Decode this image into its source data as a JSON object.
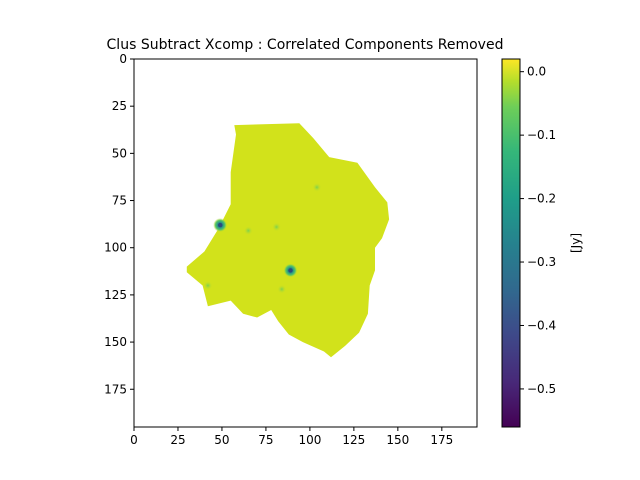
{
  "chart_data": {
    "type": "heatmap",
    "title": "Clus Subtract Xcomp : Correlated Components Removed",
    "xlabel": "",
    "ylabel": "",
    "xlim": [
      0,
      195
    ],
    "ylim": [
      195,
      0
    ],
    "xticks": [
      "0",
      "25",
      "50",
      "75",
      "100",
      "125",
      "150",
      "175"
    ],
    "yticks": [
      "0",
      "25",
      "50",
      "75",
      "100",
      "125",
      "150",
      "175"
    ],
    "colorbar": {
      "label": "[Jy]",
      "range": [
        -0.56,
        0.02
      ],
      "ticks": [
        "0.0",
        "−0.1",
        "−0.2",
        "−0.3",
        "−0.4",
        "−0.5"
      ],
      "colormap": "viridis"
    },
    "valid_region_polygon": [
      [
        57,
        35
      ],
      [
        94,
        34
      ],
      [
        102,
        42
      ],
      [
        111,
        52
      ],
      [
        127,
        55
      ],
      [
        137,
        68
      ],
      [
        144,
        76
      ],
      [
        145,
        85
      ],
      [
        141,
        95
      ],
      [
        137,
        100
      ],
      [
        137,
        112
      ],
      [
        134,
        120
      ],
      [
        133,
        135
      ],
      [
        128,
        145
      ],
      [
        120,
        152
      ],
      [
        112,
        158
      ],
      [
        108,
        155
      ],
      [
        96,
        150
      ],
      [
        88,
        146
      ],
      [
        82,
        139
      ],
      [
        78,
        133
      ],
      [
        70,
        137
      ],
      [
        62,
        135
      ],
      [
        55,
        128
      ],
      [
        42,
        131
      ],
      [
        39,
        120
      ],
      [
        30,
        113
      ],
      [
        30,
        110
      ],
      [
        40,
        102
      ],
      [
        48,
        90
      ],
      [
        55,
        77
      ],
      [
        55,
        60
      ],
      [
        58,
        40
      ]
    ],
    "background_value": 0.01,
    "sources": [
      {
        "x": 49,
        "y": 88,
        "value": -0.36
      },
      {
        "x": 89,
        "y": 112,
        "value": -0.4
      },
      {
        "x": 84,
        "y": 122,
        "value": -0.12
      },
      {
        "x": 104,
        "y": 68,
        "value": -0.08
      },
      {
        "x": 42,
        "y": 120,
        "value": -0.07
      },
      {
        "x": 65,
        "y": 91,
        "value": -0.04
      },
      {
        "x": 81,
        "y": 89,
        "value": -0.03
      }
    ]
  }
}
